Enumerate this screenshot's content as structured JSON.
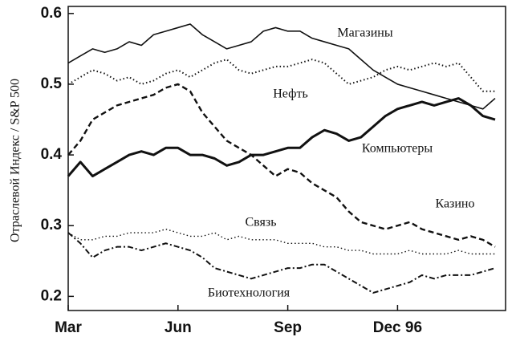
{
  "chart_data": {
    "type": "line",
    "ylabel": "Отраслевой Индекс / S&P 500",
    "categories": [
      "Mar",
      null,
      null,
      null,
      null,
      null,
      null,
      null,
      null,
      "Jun",
      null,
      null,
      null,
      null,
      null,
      null,
      null,
      null,
      "Sep",
      null,
      null,
      null,
      null,
      null,
      null,
      null,
      null,
      "Dec 96",
      null,
      null,
      null,
      null,
      null,
      null,
      null,
      null
    ],
    "ylim": [
      0.18,
      0.61
    ],
    "yticks": [
      0.2,
      0.3,
      0.4,
      0.5,
      0.6
    ],
    "series": [
      {
        "name": "Магазины",
        "color": "#111111",
        "dash": "solid",
        "width": 1.6,
        "values": [
          0.53,
          0.54,
          0.55,
          0.545,
          0.55,
          0.56,
          0.555,
          0.57,
          0.575,
          0.58,
          0.585,
          0.57,
          0.56,
          0.55,
          0.555,
          0.56,
          0.575,
          0.58,
          0.575,
          0.575,
          0.565,
          0.56,
          0.555,
          0.55,
          0.535,
          0.52,
          0.51,
          0.5,
          0.495,
          0.49,
          0.485,
          0.48,
          0.475,
          0.47,
          0.465,
          0.48
        ]
      },
      {
        "name": "Нефть",
        "color": "#111111",
        "dash": "dotted",
        "width": 2,
        "values": [
          0.5,
          0.51,
          0.52,
          0.515,
          0.505,
          0.51,
          0.5,
          0.505,
          0.515,
          0.52,
          0.51,
          0.52,
          0.53,
          0.535,
          0.52,
          0.515,
          0.52,
          0.525,
          0.525,
          0.53,
          0.535,
          0.53,
          0.515,
          0.5,
          0.505,
          0.51,
          0.52,
          0.525,
          0.52,
          0.525,
          0.53,
          0.525,
          0.53,
          0.51,
          0.49,
          0.49
        ]
      },
      {
        "name": "Компьютеры",
        "color": "#111111",
        "dash": "solid",
        "width": 3,
        "values": [
          0.37,
          0.39,
          0.37,
          0.38,
          0.39,
          0.4,
          0.405,
          0.4,
          0.41,
          0.41,
          0.4,
          0.4,
          0.395,
          0.385,
          0.39,
          0.4,
          0.4,
          0.405,
          0.41,
          0.41,
          0.425,
          0.435,
          0.43,
          0.42,
          0.425,
          0.44,
          0.455,
          0.465,
          0.47,
          0.475,
          0.47,
          0.475,
          0.48,
          0.47,
          0.455,
          0.45
        ]
      },
      {
        "name": "Казино",
        "color": "#111111",
        "dash": "dashed",
        "width": 2.4,
        "values": [
          0.4,
          0.42,
          0.45,
          0.46,
          0.47,
          0.475,
          0.48,
          0.485,
          0.495,
          0.5,
          0.49,
          0.46,
          0.44,
          0.42,
          0.41,
          0.4,
          0.385,
          0.37,
          0.38,
          0.375,
          0.36,
          0.35,
          0.34,
          0.32,
          0.305,
          0.3,
          0.295,
          0.3,
          0.305,
          0.295,
          0.29,
          0.285,
          0.28,
          0.285,
          0.28,
          0.27
        ]
      },
      {
        "name": "Связь",
        "color": "#111111",
        "dash": "dotted",
        "width": 1.4,
        "values": [
          0.29,
          0.28,
          0.28,
          0.285,
          0.285,
          0.29,
          0.29,
          0.29,
          0.295,
          0.29,
          0.285,
          0.285,
          0.29,
          0.28,
          0.285,
          0.28,
          0.28,
          0.28,
          0.275,
          0.275,
          0.275,
          0.27,
          0.27,
          0.265,
          0.265,
          0.26,
          0.26,
          0.26,
          0.265,
          0.26,
          0.26,
          0.26,
          0.265,
          0.26,
          0.26,
          0.26
        ]
      },
      {
        "name": "Биотехнология",
        "color": "#111111",
        "dash": "dashdot",
        "width": 2,
        "values": [
          0.29,
          0.275,
          0.255,
          0.265,
          0.27,
          0.27,
          0.265,
          0.27,
          0.275,
          0.27,
          0.265,
          0.255,
          0.24,
          0.235,
          0.23,
          0.225,
          0.23,
          0.235,
          0.24,
          0.24,
          0.245,
          0.245,
          0.235,
          0.225,
          0.215,
          0.205,
          0.21,
          0.215,
          0.22,
          0.23,
          0.225,
          0.23,
          0.23,
          0.23,
          0.235,
          0.24
        ]
      }
    ]
  }
}
